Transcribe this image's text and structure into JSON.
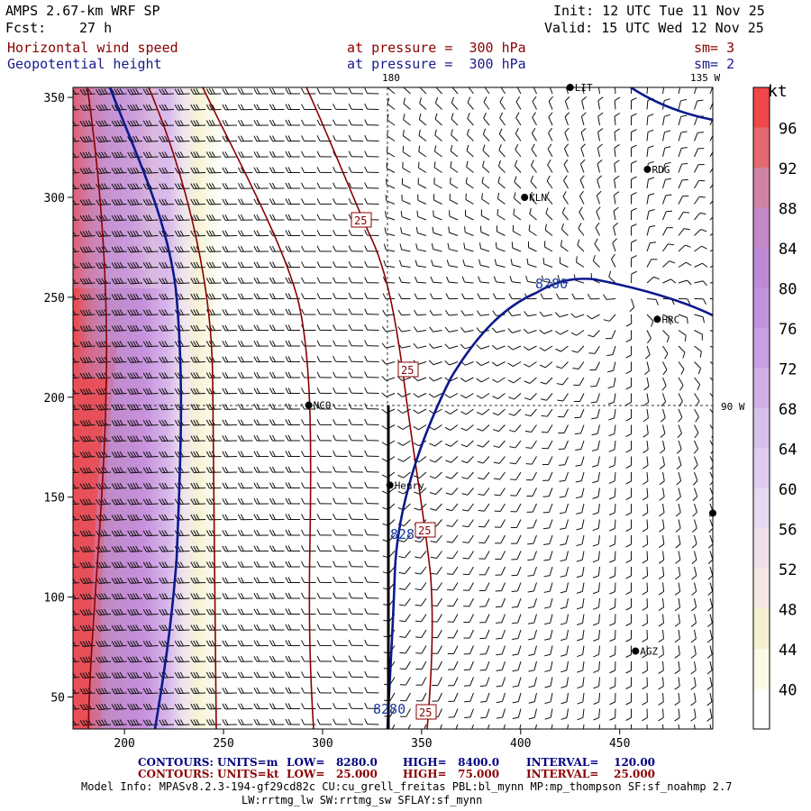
{
  "header": {
    "title": "AMPS 2.67-km WRF SP",
    "fcst_label": "Fcst:",
    "fcst_value": "27 h",
    "init": "Init: 12 UTC Tue 11 Nov 25",
    "valid": "Valid: 15 UTC Wed 12 Nov 25",
    "field1_name": "Horizontal wind speed",
    "field1_level": "at pressure =  300 hPa",
    "field1_sm": "sm= 3",
    "field2_name": "Geopotential height",
    "field2_level": "at pressure =  300 hPa",
    "field2_sm": "sm= 2"
  },
  "map": {
    "lon_labels": [
      "180",
      "135 W",
      "90 W"
    ],
    "stations": [
      {
        "name": "LIT",
        "x": 425,
        "y": 355
      },
      {
        "name": "RDG",
        "x": 464,
        "y": 314
      },
      {
        "name": "KLN",
        "x": 402,
        "y": 300
      },
      {
        "name": "HRC",
        "x": 469,
        "y": 239
      },
      {
        "name": "NCO",
        "x": 293,
        "y": 196
      },
      {
        "name": "Henry",
        "x": 334,
        "y": 156
      },
      {
        "name": "AGZ",
        "x": 458,
        "y": 73
      },
      {
        "name": "",
        "x": 497,
        "y": 142
      }
    ],
    "height_contour_label": "8280",
    "wind_contour_label": "25",
    "x_axis": {
      "range": [
        174,
        497
      ],
      "ticks": [
        200,
        250,
        300,
        350,
        400,
        450
      ]
    },
    "y_axis": {
      "range": [
        34,
        355
      ],
      "ticks": [
        50,
        100,
        150,
        200,
        250,
        300,
        350
      ]
    }
  },
  "colorbar": {
    "unit": "kt",
    "labels": [
      "96",
      "92",
      "88",
      "84",
      "80",
      "76",
      "72",
      "68",
      "64",
      "60",
      "56",
      "52",
      "48",
      "44",
      "40"
    ],
    "colors": [
      "#f04848",
      "#e36870",
      "#cf82a6",
      "#c487c8",
      "#be8ad6",
      "#c392dc",
      "#c9a0e2",
      "#d0b0e8",
      "#d8c0ec",
      "#e0ccf0",
      "#e8d8f2",
      "#f0e0ec",
      "#f4e8e0",
      "#f6f0d0",
      "#fafae6",
      "#ffffff"
    ]
  },
  "footer": {
    "line1_contours": "CONTOURS:",
    "line1_units": "UNITS=m",
    "line1_low": "LOW=   8280.0",
    "line1_high": "HIGH=   8400.0",
    "line1_interval": "INTERVAL=    120.00",
    "line2_contours": "CONTOURS:",
    "line2_units": "UNITS=kt",
    "line2_low": "LOW=   25.000",
    "line2_high": "HIGH=   75.000",
    "line2_interval": "INTERVAL=    25.000",
    "model_info": "Model Info: MPASv8.2.3-194-gf29cd82c CU:cu_grell_freitas PBL:bl_mynn MP:mp_thompson SF:sf_noahmp 2.7",
    "model_info2": "LW:rrtmg_lw SW:rrtmg_sw SFLAY:sf_mynn"
  }
}
